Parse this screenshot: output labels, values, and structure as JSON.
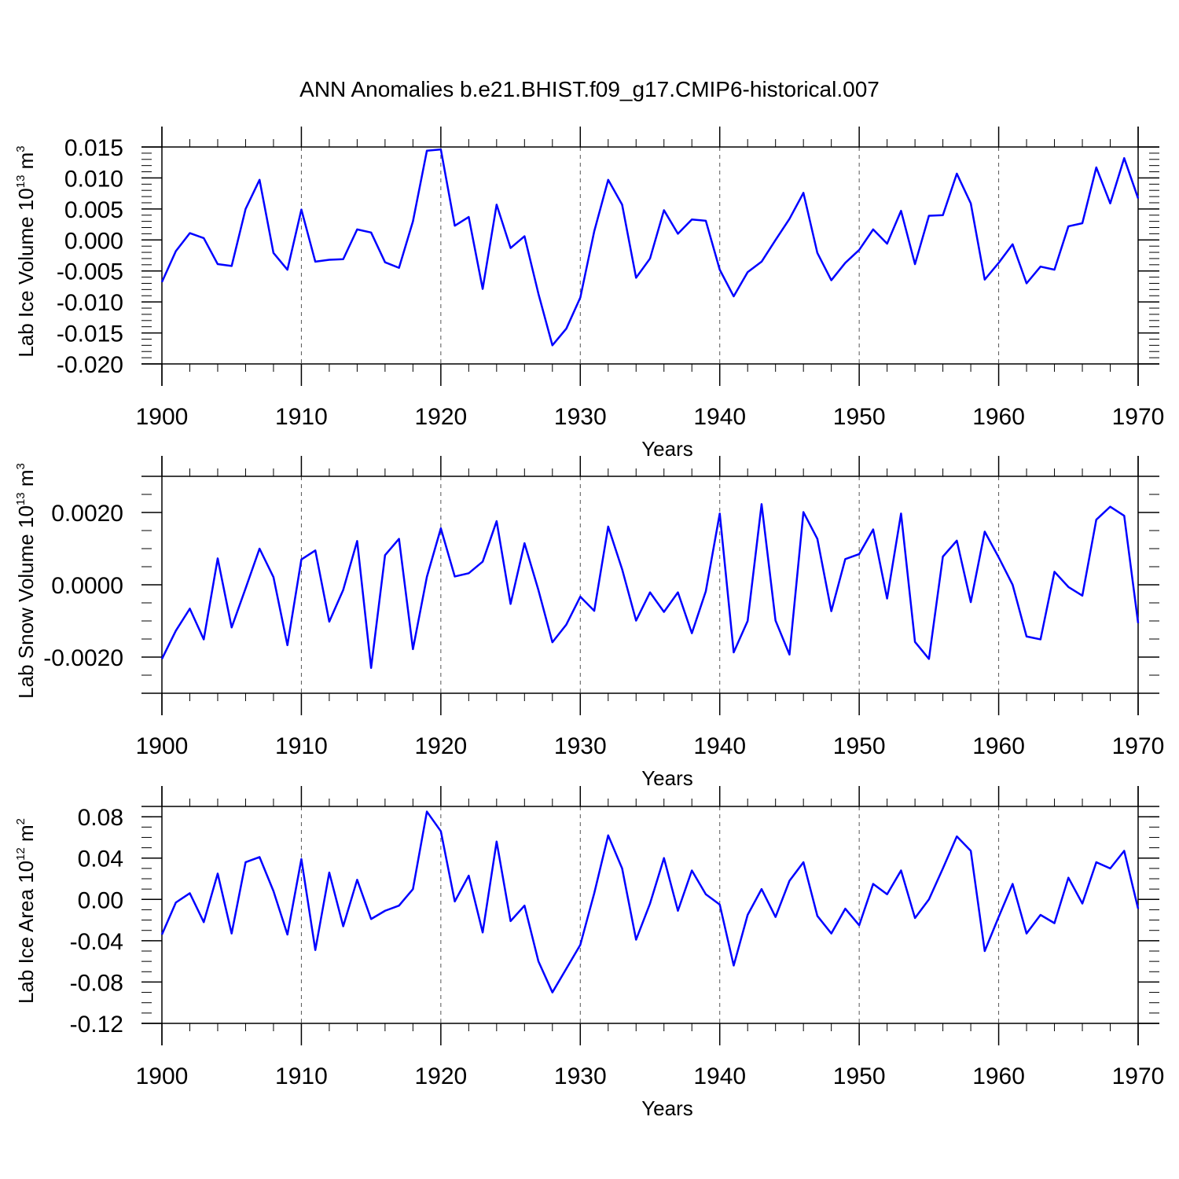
{
  "title": "ANN Anomalies b.e21.BHIST.f09_g17.CMIP6-historical.007",
  "colors": {
    "line": "#0000ff",
    "axis": "#000000",
    "grid": "#555555",
    "background": "#ffffff"
  },
  "chart_data": [
    {
      "type": "line",
      "series_name": "Lab Ice Volume",
      "ylabel": {
        "base": "Lab Ice Volume 10",
        "exp": "13",
        "unit": " m",
        "unit_exp": "3"
      },
      "xlabel": "Years",
      "xlim": [
        1900,
        1970
      ],
      "ylim": [
        -0.02,
        0.015
      ],
      "xticks": [
        1900,
        1910,
        1920,
        1930,
        1940,
        1950,
        1960,
        1970
      ],
      "xtick_labels": [
        "1900",
        "1910",
        "1920",
        "1930",
        "1940",
        "1950",
        "1960",
        "1970"
      ],
      "yticks": [
        -0.02,
        -0.015,
        -0.01,
        -0.005,
        0.0,
        0.005,
        0.01,
        0.015
      ],
      "ytick_labels": [
        "-0.020",
        "-0.015",
        "-0.010",
        "-0.005",
        "0.000",
        "0.005",
        "0.010",
        "0.015"
      ],
      "y_minor_step": 0.001,
      "grid": "vertical-dashed",
      "x": [
        1900,
        1901,
        1902,
        1903,
        1904,
        1905,
        1906,
        1907,
        1908,
        1909,
        1910,
        1911,
        1912,
        1913,
        1914,
        1915,
        1916,
        1917,
        1918,
        1919,
        1920,
        1921,
        1922,
        1923,
        1924,
        1925,
        1926,
        1927,
        1928,
        1929,
        1930,
        1931,
        1932,
        1933,
        1934,
        1935,
        1936,
        1937,
        1938,
        1939,
        1940,
        1941,
        1942,
        1943,
        1944,
        1945,
        1946,
        1947,
        1948,
        1949,
        1950,
        1951,
        1952,
        1953,
        1954,
        1955,
        1956,
        1957,
        1958,
        1959,
        1960,
        1961,
        1962,
        1963,
        1964,
        1965,
        1966,
        1967,
        1968,
        1969,
        1970
      ],
      "values": [
        -0.0068,
        -0.0018,
        0.0011,
        0.0003,
        -0.0039,
        -0.0042,
        0.005,
        0.0097,
        -0.0021,
        -0.0048,
        0.0049,
        -0.0035,
        -0.0032,
        -0.0031,
        0.0017,
        0.0012,
        -0.0036,
        -0.0045,
        0.003,
        0.0144,
        0.0146,
        0.0023,
        0.0037,
        -0.0079,
        0.0057,
        -0.0013,
        0.0006,
        -0.0087,
        -0.017,
        -0.0143,
        -0.0093,
        0.0014,
        0.0097,
        0.0057,
        -0.0061,
        -0.003,
        0.0048,
        0.001,
        0.0033,
        0.0031,
        -0.0048,
        -0.0091,
        -0.0052,
        -0.0035,
        0.0,
        0.0034,
        0.0076,
        -0.0021,
        -0.0065,
        -0.0037,
        -0.0016,
        0.0017,
        -0.0006,
        0.0047,
        -0.0039,
        0.0039,
        0.004,
        0.0107,
        0.0059,
        -0.0064,
        -0.0037,
        -0.0007,
        -0.007,
        -0.0043,
        -0.0048,
        0.0022,
        0.0027,
        0.0117,
        0.0059,
        0.0132,
        0.0067
      ]
    },
    {
      "type": "line",
      "series_name": "Lab Snow Volume",
      "ylabel": {
        "base": "Lab Snow Volume 10",
        "exp": "13",
        "unit": " m",
        "unit_exp": "3"
      },
      "xlabel": "Years",
      "xlim": [
        1900,
        1970
      ],
      "ylim": [
        -0.003,
        0.003
      ],
      "xticks": [
        1900,
        1910,
        1920,
        1930,
        1940,
        1950,
        1960,
        1970
      ],
      "xtick_labels": [
        "1900",
        "1910",
        "1920",
        "1930",
        "1940",
        "1950",
        "1960",
        "1970"
      ],
      "yticks": [
        -0.002,
        0.0,
        0.002
      ],
      "ytick_labels": [
        "-0.0020",
        "0.0000",
        "0.0020"
      ],
      "y_minor_step": 0.0005,
      "grid": "vertical-dashed",
      "x": [
        1900,
        1901,
        1902,
        1903,
        1904,
        1905,
        1906,
        1907,
        1908,
        1909,
        1910,
        1911,
        1912,
        1913,
        1914,
        1915,
        1916,
        1917,
        1918,
        1919,
        1920,
        1921,
        1922,
        1923,
        1924,
        1925,
        1926,
        1927,
        1928,
        1929,
        1930,
        1931,
        1932,
        1933,
        1934,
        1935,
        1936,
        1937,
        1938,
        1939,
        1940,
        1941,
        1942,
        1943,
        1944,
        1945,
        1946,
        1947,
        1948,
        1949,
        1950,
        1951,
        1952,
        1953,
        1954,
        1955,
        1956,
        1957,
        1958,
        1959,
        1960,
        1961,
        1962,
        1963,
        1964,
        1965,
        1966,
        1967,
        1968,
        1969,
        1970
      ],
      "values": [
        -0.00205,
        -0.00127,
        -0.00066,
        -0.00151,
        0.00073,
        -0.00118,
        -0.0001,
        0.001,
        0.00021,
        -0.00167,
        0.0007,
        0.00095,
        -0.00102,
        -0.00014,
        0.00121,
        -0.0023,
        0.00082,
        0.00127,
        -0.00178,
        0.00022,
        0.00156,
        0.00023,
        0.00032,
        0.00064,
        0.00176,
        -0.00053,
        0.00115,
        -0.00015,
        -0.00159,
        -0.0011,
        -0.00033,
        -0.00072,
        0.00161,
        0.00043,
        -0.00099,
        -0.00021,
        -0.00075,
        -0.00021,
        -0.00134,
        -0.00018,
        0.00197,
        -0.00187,
        -0.001,
        0.00223,
        -0.00099,
        -0.00193,
        0.00201,
        0.00127,
        -0.00073,
        0.00071,
        0.00085,
        0.00153,
        -0.00038,
        0.00197,
        -0.00158,
        -0.00205,
        0.00078,
        0.00122,
        -0.00048,
        0.00147,
        0.00076,
        0.0,
        -0.00143,
        -0.00151,
        0.00036,
        -6e-05,
        -0.0003,
        0.0018,
        0.00216,
        0.00191,
        -0.00106
      ]
    },
    {
      "type": "line",
      "series_name": "Lab Ice Area",
      "ylabel": {
        "base": "Lab Ice Area 10",
        "exp": "12",
        "unit": " m",
        "unit_exp": "2"
      },
      "xlabel": "Years",
      "xlim": [
        1900,
        1970
      ],
      "ylim": [
        -0.12,
        0.09
      ],
      "xticks": [
        1900,
        1910,
        1920,
        1930,
        1940,
        1950,
        1960,
        1970
      ],
      "xtick_labels": [
        "1900",
        "1910",
        "1920",
        "1930",
        "1940",
        "1950",
        "1960",
        "1970"
      ],
      "yticks": [
        -0.12,
        -0.08,
        -0.04,
        0.0,
        0.04,
        0.08
      ],
      "ytick_labels": [
        "-0.12",
        "-0.08",
        "-0.04",
        "0.00",
        "0.04",
        "0.08"
      ],
      "y_minor_step": 0.01,
      "grid": "vertical-dashed",
      "x": [
        1900,
        1901,
        1902,
        1903,
        1904,
        1905,
        1906,
        1907,
        1908,
        1909,
        1910,
        1911,
        1912,
        1913,
        1914,
        1915,
        1916,
        1917,
        1918,
        1919,
        1920,
        1921,
        1922,
        1923,
        1924,
        1925,
        1926,
        1927,
        1928,
        1929,
        1930,
        1931,
        1932,
        1933,
        1934,
        1935,
        1936,
        1937,
        1938,
        1939,
        1940,
        1941,
        1942,
        1943,
        1944,
        1945,
        1946,
        1947,
        1948,
        1949,
        1950,
        1951,
        1952,
        1953,
        1954,
        1955,
        1956,
        1957,
        1958,
        1959,
        1960,
        1961,
        1962,
        1963,
        1964,
        1965,
        1966,
        1967,
        1968,
        1969,
        1970
      ],
      "values": [
        -0.034,
        -0.003,
        0.006,
        -0.022,
        0.025,
        -0.033,
        0.036,
        0.041,
        0.008,
        -0.034,
        0.039,
        -0.049,
        0.026,
        -0.026,
        0.019,
        -0.019,
        -0.011,
        -0.006,
        0.01,
        0.085,
        0.066,
        -0.002,
        0.023,
        -0.032,
        0.056,
        -0.021,
        -0.006,
        -0.06,
        -0.09,
        -0.067,
        -0.044,
        0.006,
        0.062,
        0.03,
        -0.039,
        -0.004,
        0.04,
        -0.011,
        0.028,
        0.005,
        -0.005,
        -0.064,
        -0.015,
        0.01,
        -0.017,
        0.018,
        0.036,
        -0.016,
        -0.033,
        -0.009,
        -0.025,
        0.015,
        0.005,
        0.028,
        -0.018,
        0.0,
        0.03,
        0.061,
        0.047,
        -0.05,
        -0.017,
        0.015,
        -0.033,
        -0.015,
        -0.023,
        0.021,
        -0.004,
        0.036,
        0.03,
        0.047,
        -0.009
      ]
    }
  ]
}
